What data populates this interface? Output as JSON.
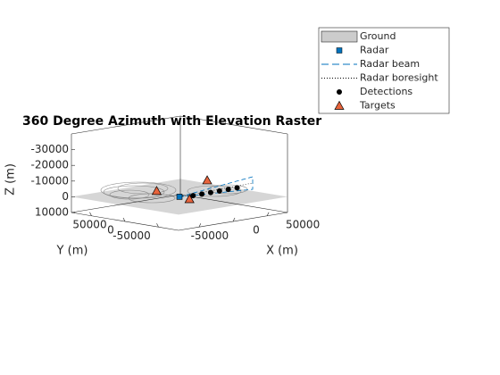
{
  "chart_data": {
    "type": "scatter3",
    "title": "360 Degree Azimuth with Elevation Raster",
    "xlabel": "X (m)",
    "ylabel": "Y (m)",
    "zlabel": "Z (m)",
    "xlim": [
      -80000,
      80000
    ],
    "ylim": [
      -80000,
      80000
    ],
    "zlim": [
      -40000,
      10000
    ],
    "zdir": "reverse",
    "xticks": [
      -50000,
      0,
      50000
    ],
    "yticks": [
      -50000,
      0,
      50000
    ],
    "zticks": [
      -30000,
      -20000,
      -10000,
      0,
      10000
    ],
    "legend_position": "northeast",
    "series": [
      {
        "name": "Ground",
        "color": "#cccccc"
      },
      {
        "name": "Radar",
        "color": "#0072bd",
        "x": [
          0
        ],
        "y": [
          0
        ],
        "z": [
          0
        ]
      },
      {
        "name": "Radar beam",
        "color": "#0072bd"
      },
      {
        "name": "Radar boresight",
        "color": "#000000"
      },
      {
        "name": "Detections",
        "color": "#000000",
        "x": [
          15000,
          25000,
          35000,
          45000,
          55000,
          65000
        ],
        "y": [
          -5000,
          -8000,
          -11000,
          -14000,
          -17000,
          -20000
        ],
        "z": [
          0,
          -500,
          -1000,
          -1500,
          -2000,
          -2500
        ]
      },
      {
        "name": "Targets",
        "color": "#e8643c",
        "x": [
          -5000,
          24000,
          -3000
        ],
        "y": [
          29000,
          -17000,
          -18000
        ],
        "z": [
          -2000,
          -10000,
          0
        ]
      }
    ]
  }
}
